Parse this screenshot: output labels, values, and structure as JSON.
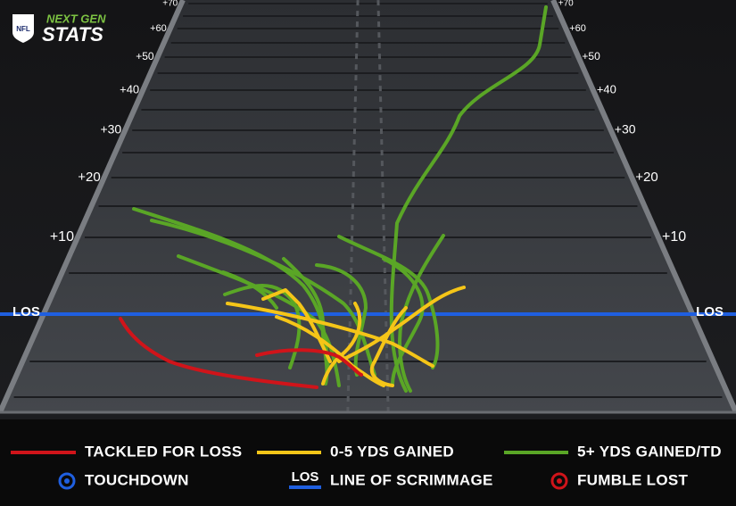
{
  "header": {
    "league": "NFL",
    "brand_top": "NEXT GEN",
    "brand_bottom": "STATS"
  },
  "field": {
    "yard_markers": [
      "+10",
      "+20",
      "+30",
      "+40",
      "+50",
      "+60",
      "+70"
    ],
    "los": "LOS"
  },
  "legend": {
    "tackled_for_loss": "TACKLED FOR LOSS",
    "short_gain": "0-5 YDS GAINED",
    "long_gain": "5+ YDS GAINED/TD",
    "touchdown": "TOUCHDOWN",
    "los_icon": "LOS",
    "line_of_scrimmage": "LINE OF SCRIMMAGE",
    "fumble_lost": "FUMBLE LOST"
  }
}
